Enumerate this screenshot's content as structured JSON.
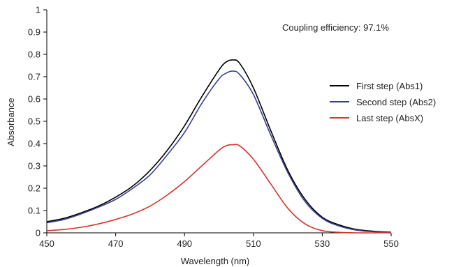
{
  "chart_data": {
    "type": "line",
    "xlabel": "Wavelength (nm)",
    "ylabel": "Absorbance",
    "xlim": [
      450,
      550
    ],
    "ylim": [
      0,
      1
    ],
    "x_ticks": [
      450,
      470,
      490,
      510,
      530,
      550
    ],
    "y_ticks": [
      0,
      0.1,
      0.2,
      0.3,
      0.4,
      0.5,
      0.6,
      0.7,
      0.8,
      0.9,
      1
    ],
    "y_tick_labels": [
      "0",
      "0.1",
      "0.2",
      "0.3",
      "0.4",
      "0.5",
      "0.6",
      "0.7",
      "0.8",
      "0.9",
      "1"
    ],
    "grid": false,
    "legend_position": "right",
    "annotation": "Coupling efficiency: 97.1%",
    "x": [
      450,
      455,
      460,
      465,
      470,
      475,
      480,
      485,
      490,
      495,
      500,
      502,
      504,
      506,
      510,
      515,
      520,
      525,
      530,
      535,
      540,
      545,
      550
    ],
    "series": [
      {
        "name": "First step (Abs1)",
        "color": "#000000",
        "values": [
          0.05,
          0.065,
          0.09,
          0.12,
          0.16,
          0.21,
          0.28,
          0.37,
          0.48,
          0.61,
          0.73,
          0.765,
          0.775,
          0.76,
          0.65,
          0.46,
          0.28,
          0.15,
          0.07,
          0.035,
          0.015,
          0.007,
          0.003
        ]
      },
      {
        "name": "Second step (Abs2)",
        "color": "#3a3f8f",
        "values": [
          0.045,
          0.06,
          0.085,
          0.115,
          0.15,
          0.2,
          0.26,
          0.35,
          0.45,
          0.58,
          0.69,
          0.715,
          0.725,
          0.71,
          0.62,
          0.44,
          0.27,
          0.14,
          0.065,
          0.03,
          0.012,
          0.005,
          0.002
        ]
      },
      {
        "name": "Last step (AbsX)",
        "color": "#d7322e",
        "values": [
          0.01,
          0.015,
          0.025,
          0.04,
          0.06,
          0.085,
          0.12,
          0.17,
          0.23,
          0.3,
          0.37,
          0.39,
          0.395,
          0.39,
          0.33,
          0.22,
          0.11,
          0.04,
          0.01,
          0.002,
          0,
          0,
          0
        ]
      }
    ]
  }
}
